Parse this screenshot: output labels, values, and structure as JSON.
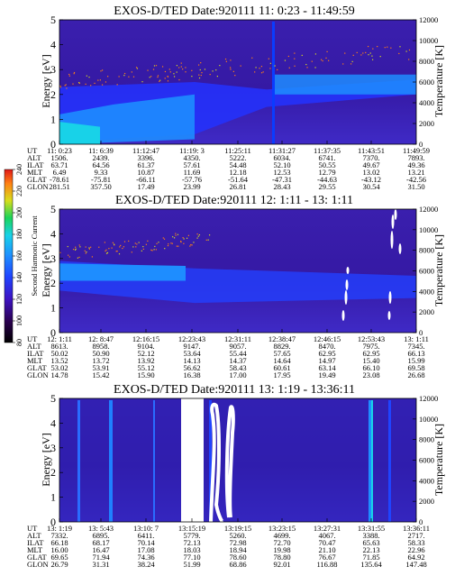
{
  "chart_data": [
    {
      "type": "heatmap",
      "title": "EXOS-D/TED   Date:920111  11: 0:23 - 11:49:59",
      "ylabel": "Energy [eV]",
      "ylim": [
        0,
        5
      ],
      "yticks": [
        "0",
        "1",
        "2",
        "3",
        "4",
        "5"
      ],
      "y2label": "Temperature [K]",
      "y2lim": [
        0,
        12000
      ],
      "y2ticks": [
        "0",
        "2000",
        "4000",
        "6000",
        "8000",
        "10000",
        "12000"
      ],
      "row_labels": [
        "UT",
        "ALT",
        "ILAT",
        "MLT",
        "GLAT",
        "GLON"
      ],
      "columns": [
        [
          "11: 0:23",
          "1506.",
          "63.71",
          "6.49",
          "-78.61",
          "281.51"
        ],
        [
          "11: 6:39",
          "2439.",
          "64.56",
          "9.33",
          "-75.81",
          "357.50"
        ],
        [
          "11:12:47",
          "3396.",
          "61.37",
          "10.87",
          "-66.11",
          "17.49"
        ],
        [
          "11:19: 3",
          "4350.",
          "57.61",
          "11.69",
          "-57.76",
          "23.99"
        ],
        [
          "11:25:11",
          "5222.",
          "54.48",
          "12.18",
          "-51.64",
          "26.81"
        ],
        [
          "11:31:27",
          "6034.",
          "52.10",
          "12.53",
          "-47.31",
          "28.43"
        ],
        [
          "11:37:35",
          "6741.",
          "50.55",
          "12.79",
          "-44.63",
          "29.55"
        ],
        [
          "11:43:51",
          "7370.",
          "49.67",
          "13.02",
          "-43.12",
          "30.54"
        ],
        [
          "11:49:59",
          "7893.",
          "49.36",
          "13.21",
          "-42.56",
          "31.50"
        ]
      ],
      "temperature_points": "scattered dots rising from about 2.5 eV to 3.7 eV"
    },
    {
      "type": "heatmap",
      "title": "EXOS-D/TED   Date:920111  12: 1:11 - 13: 1:11",
      "ylabel": "Energy [eV]",
      "ylim": [
        0,
        5
      ],
      "yticks": [
        "0",
        "1",
        "2",
        "3",
        "4",
        "5"
      ],
      "y2label": "Temperature [K]",
      "y2lim": [
        0,
        12000
      ],
      "y2ticks": [
        "0",
        "2000",
        "4000",
        "6000",
        "8000",
        "10000",
        "12000"
      ],
      "row_labels": [
        "UT",
        "ALT",
        "ILAT",
        "MLT",
        "GLAT",
        "GLON"
      ],
      "columns": [
        [
          "12: 1:11",
          "8613.",
          "50.02",
          "13.52",
          "53.02",
          "14.78"
        ],
        [
          "12: 8:47",
          "8958.",
          "50.90",
          "13.72",
          "53.91",
          "15.42"
        ],
        [
          "12:16:15",
          "9104.",
          "52.12",
          "13.92",
          "55.12",
          "15.90"
        ],
        [
          "12:23:43",
          "9147.",
          "53.64",
          "14.13",
          "56.62",
          "16.38"
        ],
        [
          "12:31:11",
          "9057.",
          "55.44",
          "14.37",
          "58.43",
          "17.00"
        ],
        [
          "12:38:47",
          "8829.",
          "57.65",
          "14.64",
          "60.61",
          "17.95"
        ],
        [
          "12:46:15",
          "8470.",
          "62.95",
          "14.97",
          "63.14",
          "19.49"
        ],
        [
          "12:53:43",
          "7975.",
          "62.95",
          "15.40",
          "66.10",
          "23.08"
        ],
        [
          "13: 1:11",
          "7345.",
          "66.13",
          "15.99",
          "69.58",
          "26.68"
        ]
      ]
    },
    {
      "type": "heatmap",
      "title": "EXOS-D/TED   Date:920111  13: 1:19 - 13:36:11",
      "ylabel": "Energy [eV]",
      "ylim": [
        0,
        5
      ],
      "yticks": [
        "0",
        "1",
        "2",
        "3",
        "4",
        "5"
      ],
      "y2label": "Temperature [K]",
      "y2lim": [
        0,
        12000
      ],
      "y2ticks": [
        "0",
        "2000",
        "4000",
        "6000",
        "8000",
        "10000",
        "12000"
      ],
      "row_labels": [
        "UT",
        "ALT",
        "ILAT",
        "MLT",
        "GLAT",
        "GLON"
      ],
      "columns": [
        [
          "13: 1:19",
          "7332.",
          "66.18",
          "16.00",
          "69.65",
          "26.79"
        ],
        [
          "13: 5:43",
          "6895.",
          "68.17",
          "16.47",
          "71.94",
          "31.31"
        ],
        [
          "13:10: 7",
          "6411.",
          "70.14",
          "17.08",
          "74.36",
          "38.24"
        ],
        [
          "13:15:19",
          "5779.",
          "72.13",
          "18.03",
          "77.10",
          "51.99"
        ],
        [
          "13:19:15",
          "5260.",
          "72.98",
          "18.94",
          "78.60",
          "68.86"
        ],
        [
          "13:23:15",
          "4699.",
          "72.70",
          "19.98",
          "78.80",
          "92.01"
        ],
        [
          "13:27:31",
          "4067.",
          "70.47",
          "21.10",
          "76.67",
          "116.88"
        ],
        [
          "13:31:55",
          "3388.",
          "65.63",
          "22.13",
          "71.85",
          "135.64"
        ],
        [
          "13:36:11",
          "2717.",
          "58.33",
          "22.96",
          "64.92",
          "147.48"
        ]
      ]
    }
  ],
  "colorbar": {
    "label": "Second Harmonic Current",
    "ticks": [
      "80",
      "100",
      "120",
      "140",
      "160",
      "180",
      "200",
      "220",
      "240"
    ],
    "colors": [
      "#000000",
      "#2a004e",
      "#3d12c2",
      "#1f44ff",
      "#1e8dff",
      "#18d2e8",
      "#1ad45a",
      "#d8de1c",
      "#ff7f14",
      "#e01818"
    ]
  }
}
